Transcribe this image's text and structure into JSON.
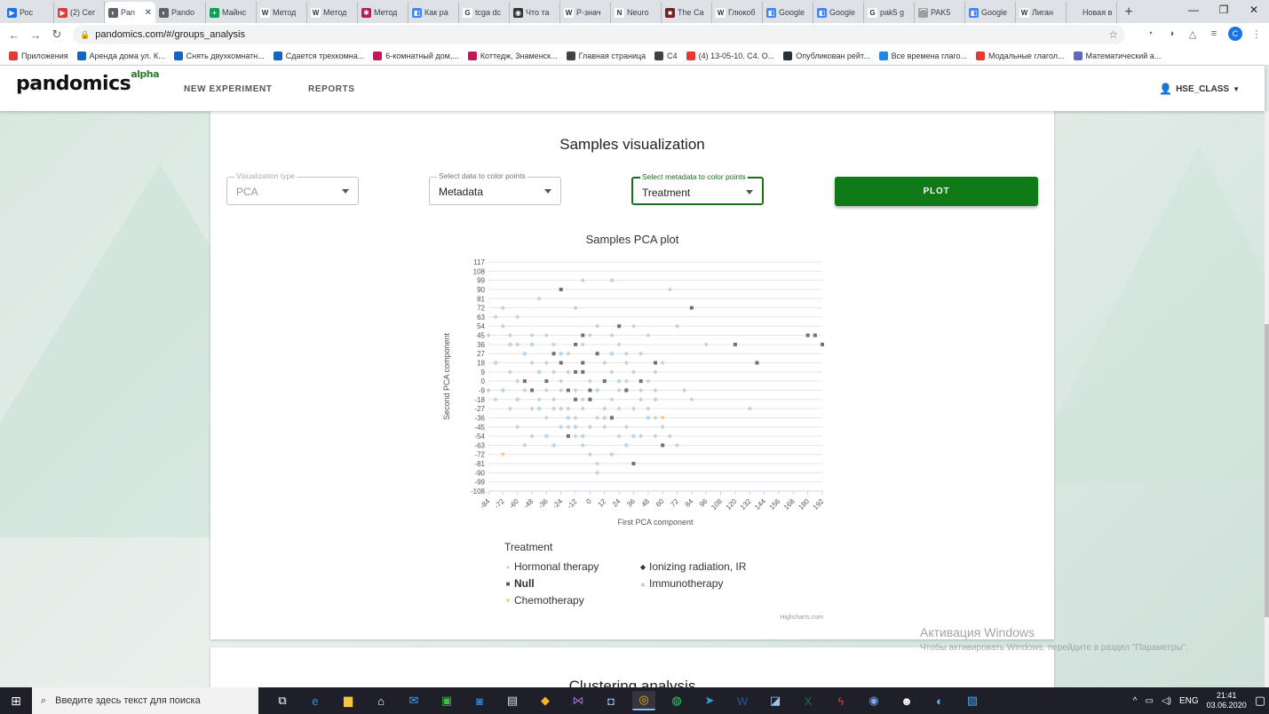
{
  "browser": {
    "tabs": [
      {
        "title": "Рос",
        "color": "#1a73e8",
        "glyph": "▶"
      },
      {
        "title": "(2) Сег",
        "color": "#e53935",
        "glyph": "▶"
      },
      {
        "title": "Pan",
        "color": "#5f6368",
        "glyph": "◐",
        "active": true
      },
      {
        "title": "Pando",
        "color": "#5f6368",
        "glyph": "◐"
      },
      {
        "title": "Майнс",
        "color": "#0f9d58",
        "glyph": "+"
      },
      {
        "title": "Метод",
        "color": "#ffffff",
        "glyph": "W"
      },
      {
        "title": "Метод",
        "color": "#ffffff",
        "glyph": "W"
      },
      {
        "title": "Метод",
        "color": "#c2185b",
        "glyph": "✱"
      },
      {
        "title": "Как ра",
        "color": "#4285f4",
        "glyph": "◧"
      },
      {
        "title": "tcga dc",
        "color": "#ffffff",
        "glyph": "G"
      },
      {
        "title": "Что та",
        "color": "#333333",
        "glyph": "◉"
      },
      {
        "title": "Р-знач",
        "color": "#ffffff",
        "glyph": "W"
      },
      {
        "title": "Neuro",
        "color": "#ffffff",
        "glyph": "N"
      },
      {
        "title": "The Ca",
        "color": "#7b1f1f",
        "glyph": "■"
      },
      {
        "title": "Глюкоб",
        "color": "#ffffff",
        "glyph": "W"
      },
      {
        "title": "Google",
        "color": "#4285f4",
        "glyph": "◧"
      },
      {
        "title": "Google",
        "color": "#4285f4",
        "glyph": "◧"
      },
      {
        "title": "pak5 g",
        "color": "#ffffff",
        "glyph": "G"
      },
      {
        "title": "PAK5",
        "color": "#9e9e9e",
        "glyph": "⌒"
      },
      {
        "title": "Google",
        "color": "#4285f4",
        "glyph": "◧"
      },
      {
        "title": "Лиган",
        "color": "#ffffff",
        "glyph": "W"
      },
      {
        "title": "Новая вкл",
        "color": "#dee1e6",
        "glyph": ""
      }
    ],
    "url": "pandomics.com/#/groups_analysis",
    "bookmarks": [
      {
        "label": "Приложения",
        "color": "#e53935"
      },
      {
        "label": "Аренда дома ул. К...",
        "color": "#1565c0"
      },
      {
        "label": "Снять двухкомнатн...",
        "color": "#1565c0"
      },
      {
        "label": "Сдается трехкомна...",
        "color": "#1565c0"
      },
      {
        "label": "6-комнатный дом,...",
        "color": "#c2185b"
      },
      {
        "label": "Коттедж, Знаменск...",
        "color": "#c2185b"
      },
      {
        "label": "Главная страница",
        "color": "#424242"
      },
      {
        "label": "C4",
        "color": "#424242"
      },
      {
        "label": "(4) 13-05-10. C4. О...",
        "color": "#e53935"
      },
      {
        "label": "Опубликован рейт...",
        "color": "#263238"
      },
      {
        "label": "Все времена глаго...",
        "color": "#1e88e5"
      },
      {
        "label": "Модальные глагол...",
        "color": "#e53935"
      },
      {
        "label": "Математический а...",
        "color": "#5c6bc0"
      }
    ]
  },
  "app": {
    "logo": "pandomics",
    "logo_sup": "alpha",
    "nav": [
      "NEW EXPERIMENT",
      "REPORTS"
    ],
    "user": "HSE_CLASS"
  },
  "section": {
    "title": "Samples visualization",
    "fields": {
      "viz_type": {
        "label": "Visualization type",
        "value": "PCA"
      },
      "color_data": {
        "label": "Select data to color points",
        "value": "Metadata"
      },
      "color_meta": {
        "label": "Select metadata to color points",
        "value": "Treatment"
      }
    },
    "plot_button": "PLOT"
  },
  "chart_data": {
    "type": "scatter",
    "title": "Samples PCA plot",
    "xlabel": "First PCA component",
    "ylabel": "Second PCA component",
    "xlim": [
      -84,
      192
    ],
    "ylim": [
      -108,
      117
    ],
    "x_ticks": [
      -84,
      -72,
      -60,
      -48,
      -36,
      -24,
      -12,
      0,
      12,
      24,
      36,
      48,
      60,
      72,
      84,
      96,
      108,
      120,
      132,
      144,
      156,
      168,
      180,
      192
    ],
    "y_ticks": [
      117,
      108,
      99,
      90,
      81,
      72,
      63,
      54,
      45,
      36,
      27,
      18,
      9,
      0,
      -9,
      -18,
      -27,
      -36,
      -45,
      -54,
      -63,
      -72,
      -81,
      -90,
      -99,
      -108
    ],
    "legend_title": "Treatment",
    "legend_placement": "bottom",
    "series": [
      {
        "name": "Hormonal therapy",
        "symbol": "circle",
        "color": "#b8d8f2",
        "points": [
          [
            -78,
            18
          ],
          [
            -66,
            36
          ],
          [
            -54,
            27
          ],
          [
            -48,
            36
          ],
          [
            -42,
            -27
          ],
          [
            -36,
            -54
          ],
          [
            -30,
            -63
          ],
          [
            -24,
            27
          ],
          [
            -18,
            -36
          ],
          [
            -12,
            -45
          ],
          [
            0,
            -18
          ],
          [
            12,
            -36
          ],
          [
            18,
            99
          ],
          [
            18,
            27
          ],
          [
            24,
            0
          ],
          [
            30,
            -63
          ],
          [
            36,
            -54
          ],
          [
            48,
            -36
          ],
          [
            54,
            -18
          ],
          [
            -72,
            -9
          ],
          [
            -60,
            -18
          ],
          [
            -42,
            9
          ],
          [
            -6,
            -54
          ],
          [
            6,
            -9
          ],
          [
            18,
            -72
          ],
          [
            30,
            -9
          ]
        ]
      },
      {
        "name": "Null",
        "symbol": "square",
        "color": "#707070",
        "points": [
          [
            -24,
            90
          ],
          [
            -54,
            0
          ],
          [
            -48,
            -9
          ],
          [
            -36,
            0
          ],
          [
            -30,
            27
          ],
          [
            -24,
            18
          ],
          [
            -18,
            -9
          ],
          [
            -12,
            9
          ],
          [
            -12,
            36
          ],
          [
            -6,
            45
          ],
          [
            -6,
            18
          ],
          [
            0,
            -9
          ],
          [
            0,
            -18
          ],
          [
            6,
            27
          ],
          [
            12,
            0
          ],
          [
            18,
            -36
          ],
          [
            24,
            54
          ],
          [
            30,
            -9
          ],
          [
            42,
            0
          ],
          [
            54,
            18
          ],
          [
            60,
            -63
          ],
          [
            36,
            -81
          ],
          [
            -18,
            -54
          ],
          [
            84,
            72
          ],
          [
            120,
            36
          ],
          [
            138,
            18
          ],
          [
            180,
            45
          ],
          [
            186,
            45
          ],
          [
            192,
            36
          ],
          [
            -6,
            9
          ],
          [
            -12,
            -18
          ]
        ]
      },
      {
        "name": "Chemotherapy",
        "symbol": "triangle-down",
        "color": "#f7c58f",
        "points": [
          [
            -72,
            -72
          ],
          [
            60,
            -36
          ]
        ]
      },
      {
        "name": "Ionizing radiation, IR",
        "symbol": "diamond",
        "color": "#cfcfcf",
        "points": [
          [
            -84,
            45
          ],
          [
            -78,
            63
          ],
          [
            -72,
            54
          ],
          [
            -66,
            45
          ],
          [
            -60,
            36
          ],
          [
            -54,
            27
          ],
          [
            -48,
            18
          ],
          [
            -42,
            9
          ],
          [
            -36,
            -9
          ],
          [
            -30,
            -18
          ],
          [
            -24,
            -27
          ],
          [
            -18,
            -45
          ],
          [
            -12,
            -54
          ],
          [
            -6,
            -63
          ],
          [
            0,
            -72
          ],
          [
            6,
            -81
          ],
          [
            12,
            -27
          ],
          [
            18,
            -18
          ],
          [
            24,
            -9
          ],
          [
            30,
            0
          ],
          [
            36,
            9
          ],
          [
            42,
            -18
          ],
          [
            48,
            -27
          ],
          [
            54,
            -36
          ],
          [
            60,
            -45
          ],
          [
            66,
            -54
          ],
          [
            72,
            -63
          ],
          [
            78,
            -9
          ],
          [
            84,
            -18
          ],
          [
            96,
            36
          ],
          [
            132,
            -27
          ],
          [
            -60,
            -45
          ],
          [
            -48,
            -54
          ],
          [
            -36,
            -36
          ],
          [
            -24,
            -9
          ],
          [
            -12,
            72
          ],
          [
            -6,
            99
          ],
          [
            6,
            -90
          ],
          [
            24,
            36
          ],
          [
            36,
            54
          ],
          [
            48,
            45
          ],
          [
            60,
            18
          ],
          [
            66,
            90
          ],
          [
            72,
            54
          ],
          [
            -42,
            81
          ],
          [
            -66,
            -27
          ],
          [
            -54,
            -9
          ],
          [
            -36,
            18
          ],
          [
            -30,
            36
          ],
          [
            -18,
            9
          ],
          [
            -6,
            -27
          ],
          [
            0,
            0
          ],
          [
            12,
            18
          ],
          [
            18,
            45
          ],
          [
            30,
            -45
          ],
          [
            42,
            -54
          ],
          [
            54,
            -9
          ],
          [
            -72,
            72
          ],
          [
            -60,
            63
          ],
          [
            -48,
            45
          ],
          [
            -24,
            0
          ],
          [
            -18,
            -27
          ],
          [
            -6,
            36
          ],
          [
            6,
            -36
          ],
          [
            24,
            -54
          ],
          [
            36,
            -27
          ],
          [
            48,
            0
          ],
          [
            54,
            -54
          ],
          [
            -66,
            9
          ],
          [
            -42,
            -18
          ],
          [
            -30,
            9
          ],
          [
            -12,
            -36
          ],
          [
            0,
            45
          ],
          [
            12,
            -45
          ],
          [
            30,
            27
          ],
          [
            42,
            27
          ],
          [
            -78,
            -18
          ],
          [
            -54,
            -63
          ],
          [
            -36,
            45
          ],
          [
            -24,
            -45
          ],
          [
            -12,
            -9
          ],
          [
            0,
            -45
          ],
          [
            18,
            9
          ],
          [
            30,
            18
          ],
          [
            -84,
            -9
          ],
          [
            -60,
            0
          ],
          [
            -48,
            -27
          ],
          [
            -30,
            -27
          ],
          [
            -18,
            27
          ],
          [
            -6,
            -18
          ],
          [
            6,
            54
          ],
          [
            24,
            -27
          ],
          [
            42,
            -9
          ],
          [
            54,
            9
          ]
        ]
      },
      {
        "name": "Immunotherapy",
        "symbol": "triangle",
        "color": "#9ed89e",
        "points": []
      }
    ]
  },
  "credits": "Highcharts.com",
  "next_section": "Clustering analysis",
  "watermark": {
    "title": "Активация Windows",
    "subtitle": "Чтобы активировать Windows, перейдите в раздел \"Параметры\"."
  },
  "taskbar": {
    "search_placeholder": "Введите здесь текст для поиска",
    "lang": "ENG",
    "time": "21:41",
    "date": "03.06.2020"
  }
}
